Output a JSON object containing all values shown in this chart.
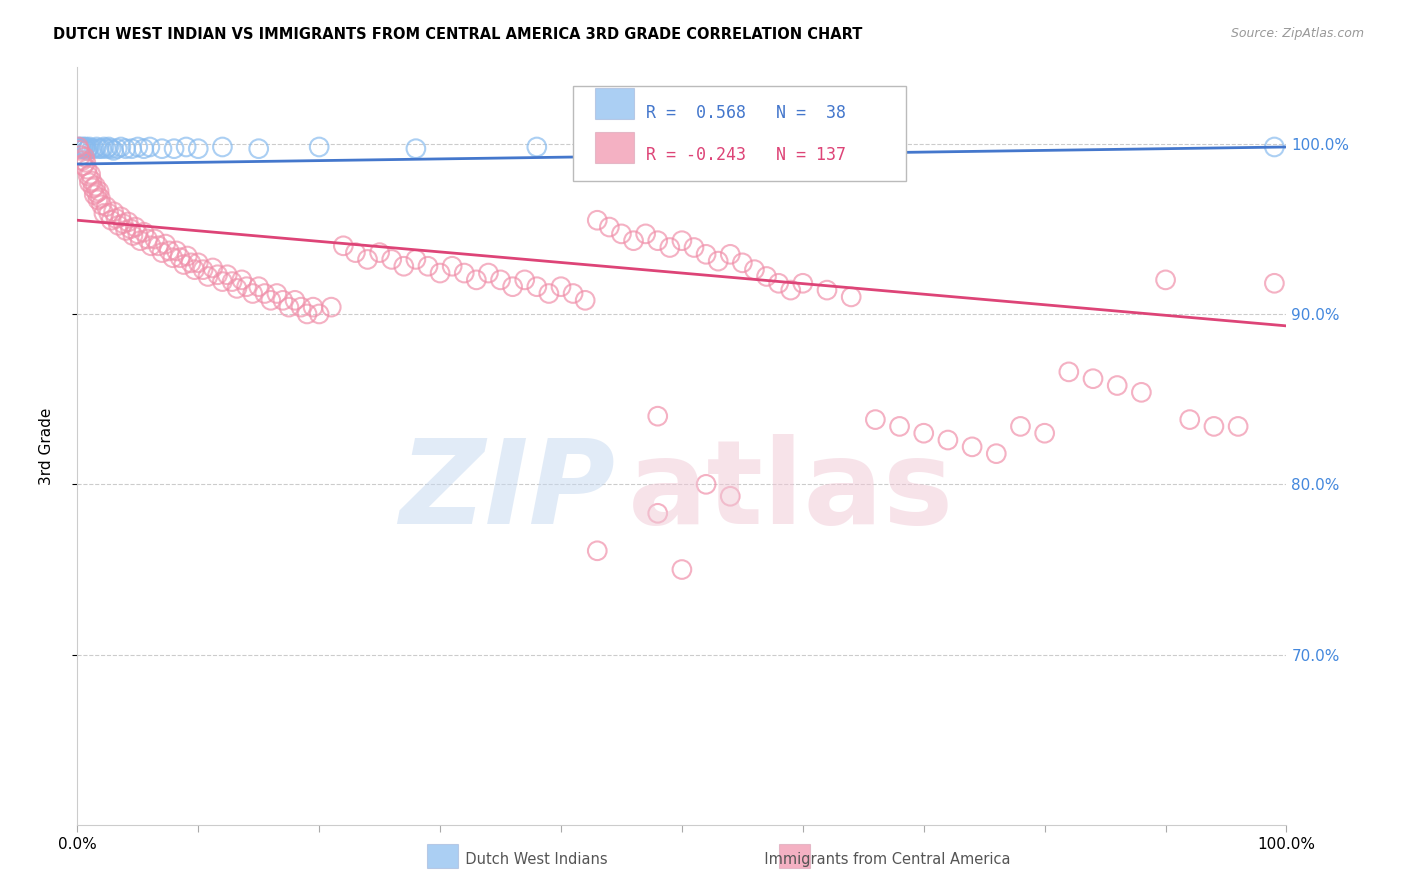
{
  "title": "DUTCH WEST INDIAN VS IMMIGRANTS FROM CENTRAL AMERICA 3RD GRADE CORRELATION CHART",
  "source": "Source: ZipAtlas.com",
  "ylabel": "3rd Grade",
  "blue_R": 0.568,
  "blue_N": 38,
  "pink_R": -0.243,
  "pink_N": 137,
  "blue_dot_color": "#88bbee",
  "pink_dot_color": "#f090aa",
  "blue_line_color": "#4477cc",
  "pink_line_color": "#dd4477",
  "right_axis_color": "#4488dd",
  "xlim": [
    0.0,
    1.0
  ],
  "ylim": [
    0.6,
    1.045
  ],
  "blue_trendline": [
    0.0,
    0.988,
    1.0,
    0.998
  ],
  "pink_trendline": [
    0.0,
    0.955,
    1.0,
    0.893
  ],
  "ytick_positions": [
    0.7,
    0.8,
    0.9,
    1.0
  ],
  "ytick_labels": [
    "70.0%",
    "80.0%",
    "90.0%",
    "100.0%"
  ],
  "blue_dots": [
    [
      0.001,
      0.998
    ],
    [
      0.002,
      0.997
    ],
    [
      0.003,
      0.998
    ],
    [
      0.004,
      0.997
    ],
    [
      0.005,
      0.998
    ],
    [
      0.006,
      0.997
    ],
    [
      0.007,
      0.998
    ],
    [
      0.008,
      0.996
    ],
    [
      0.009,
      0.997
    ],
    [
      0.01,
      0.998
    ],
    [
      0.012,
      0.997
    ],
    [
      0.014,
      0.997
    ],
    [
      0.016,
      0.998
    ],
    [
      0.018,
      0.997
    ],
    [
      0.02,
      0.997
    ],
    [
      0.022,
      0.998
    ],
    [
      0.024,
      0.997
    ],
    [
      0.026,
      0.998
    ],
    [
      0.028,
      0.997
    ],
    [
      0.03,
      0.996
    ],
    [
      0.033,
      0.997
    ],
    [
      0.036,
      0.998
    ],
    [
      0.04,
      0.997
    ],
    [
      0.045,
      0.997
    ],
    [
      0.05,
      0.998
    ],
    [
      0.055,
      0.997
    ],
    [
      0.06,
      0.998
    ],
    [
      0.07,
      0.997
    ],
    [
      0.08,
      0.997
    ],
    [
      0.09,
      0.998
    ],
    [
      0.1,
      0.997
    ],
    [
      0.12,
      0.998
    ],
    [
      0.15,
      0.997
    ],
    [
      0.2,
      0.998
    ],
    [
      0.28,
      0.997
    ],
    [
      0.38,
      0.998
    ],
    [
      0.67,
      0.998
    ],
    [
      0.99,
      0.998
    ]
  ],
  "pink_dots": [
    [
      0.001,
      0.998
    ],
    [
      0.002,
      0.996
    ],
    [
      0.003,
      0.993
    ],
    [
      0.004,
      0.99
    ],
    [
      0.005,
      0.987
    ],
    [
      0.006,
      0.992
    ],
    [
      0.007,
      0.989
    ],
    [
      0.008,
      0.985
    ],
    [
      0.009,
      0.981
    ],
    [
      0.01,
      0.977
    ],
    [
      0.011,
      0.982
    ],
    [
      0.012,
      0.978
    ],
    [
      0.013,
      0.974
    ],
    [
      0.014,
      0.97
    ],
    [
      0.015,
      0.975
    ],
    [
      0.016,
      0.971
    ],
    [
      0.017,
      0.967
    ],
    [
      0.018,
      0.972
    ],
    [
      0.019,
      0.968
    ],
    [
      0.02,
      0.964
    ],
    [
      0.022,
      0.959
    ],
    [
      0.024,
      0.963
    ],
    [
      0.026,
      0.959
    ],
    [
      0.028,
      0.955
    ],
    [
      0.03,
      0.96
    ],
    [
      0.032,
      0.956
    ],
    [
      0.034,
      0.952
    ],
    [
      0.036,
      0.957
    ],
    [
      0.038,
      0.953
    ],
    [
      0.04,
      0.949
    ],
    [
      0.042,
      0.954
    ],
    [
      0.044,
      0.95
    ],
    [
      0.046,
      0.946
    ],
    [
      0.048,
      0.951
    ],
    [
      0.05,
      0.947
    ],
    [
      0.052,
      0.943
    ],
    [
      0.055,
      0.948
    ],
    [
      0.058,
      0.944
    ],
    [
      0.061,
      0.94
    ],
    [
      0.064,
      0.944
    ],
    [
      0.067,
      0.94
    ],
    [
      0.07,
      0.936
    ],
    [
      0.073,
      0.941
    ],
    [
      0.076,
      0.937
    ],
    [
      0.079,
      0.933
    ],
    [
      0.082,
      0.937
    ],
    [
      0.085,
      0.933
    ],
    [
      0.088,
      0.929
    ],
    [
      0.091,
      0.934
    ],
    [
      0.094,
      0.93
    ],
    [
      0.097,
      0.926
    ],
    [
      0.1,
      0.93
    ],
    [
      0.104,
      0.926
    ],
    [
      0.108,
      0.922
    ],
    [
      0.112,
      0.927
    ],
    [
      0.116,
      0.923
    ],
    [
      0.12,
      0.919
    ],
    [
      0.124,
      0.923
    ],
    [
      0.128,
      0.919
    ],
    [
      0.132,
      0.915
    ],
    [
      0.136,
      0.92
    ],
    [
      0.14,
      0.916
    ],
    [
      0.145,
      0.912
    ],
    [
      0.15,
      0.916
    ],
    [
      0.155,
      0.912
    ],
    [
      0.16,
      0.908
    ],
    [
      0.165,
      0.912
    ],
    [
      0.17,
      0.908
    ],
    [
      0.175,
      0.904
    ],
    [
      0.18,
      0.908
    ],
    [
      0.185,
      0.904
    ],
    [
      0.19,
      0.9
    ],
    [
      0.195,
      0.904
    ],
    [
      0.2,
      0.9
    ],
    [
      0.21,
      0.904
    ],
    [
      0.22,
      0.94
    ],
    [
      0.23,
      0.936
    ],
    [
      0.24,
      0.932
    ],
    [
      0.25,
      0.936
    ],
    [
      0.26,
      0.932
    ],
    [
      0.27,
      0.928
    ],
    [
      0.28,
      0.932
    ],
    [
      0.29,
      0.928
    ],
    [
      0.3,
      0.924
    ],
    [
      0.31,
      0.928
    ],
    [
      0.32,
      0.924
    ],
    [
      0.33,
      0.92
    ],
    [
      0.34,
      0.924
    ],
    [
      0.35,
      0.92
    ],
    [
      0.36,
      0.916
    ],
    [
      0.37,
      0.92
    ],
    [
      0.38,
      0.916
    ],
    [
      0.39,
      0.912
    ],
    [
      0.4,
      0.916
    ],
    [
      0.41,
      0.912
    ],
    [
      0.42,
      0.908
    ],
    [
      0.43,
      0.955
    ],
    [
      0.44,
      0.951
    ],
    [
      0.45,
      0.947
    ],
    [
      0.46,
      0.943
    ],
    [
      0.47,
      0.947
    ],
    [
      0.48,
      0.943
    ],
    [
      0.49,
      0.939
    ],
    [
      0.5,
      0.943
    ],
    [
      0.51,
      0.939
    ],
    [
      0.52,
      0.935
    ],
    [
      0.53,
      0.931
    ],
    [
      0.54,
      0.935
    ],
    [
      0.55,
      0.93
    ],
    [
      0.56,
      0.926
    ],
    [
      0.57,
      0.922
    ],
    [
      0.58,
      0.918
    ],
    [
      0.59,
      0.914
    ],
    [
      0.6,
      0.918
    ],
    [
      0.62,
      0.914
    ],
    [
      0.64,
      0.91
    ],
    [
      0.66,
      0.838
    ],
    [
      0.68,
      0.834
    ],
    [
      0.7,
      0.83
    ],
    [
      0.72,
      0.826
    ],
    [
      0.74,
      0.822
    ],
    [
      0.76,
      0.818
    ],
    [
      0.78,
      0.834
    ],
    [
      0.8,
      0.83
    ],
    [
      0.82,
      0.866
    ],
    [
      0.84,
      0.862
    ],
    [
      0.86,
      0.858
    ],
    [
      0.88,
      0.854
    ],
    [
      0.9,
      0.92
    ],
    [
      0.92,
      0.838
    ],
    [
      0.94,
      0.834
    ],
    [
      0.96,
      0.834
    ],
    [
      0.48,
      0.84
    ],
    [
      0.52,
      0.8
    ],
    [
      0.54,
      0.793
    ],
    [
      0.48,
      0.783
    ],
    [
      0.43,
      0.761
    ],
    [
      0.5,
      0.75
    ],
    [
      0.99,
      0.918
    ]
  ]
}
